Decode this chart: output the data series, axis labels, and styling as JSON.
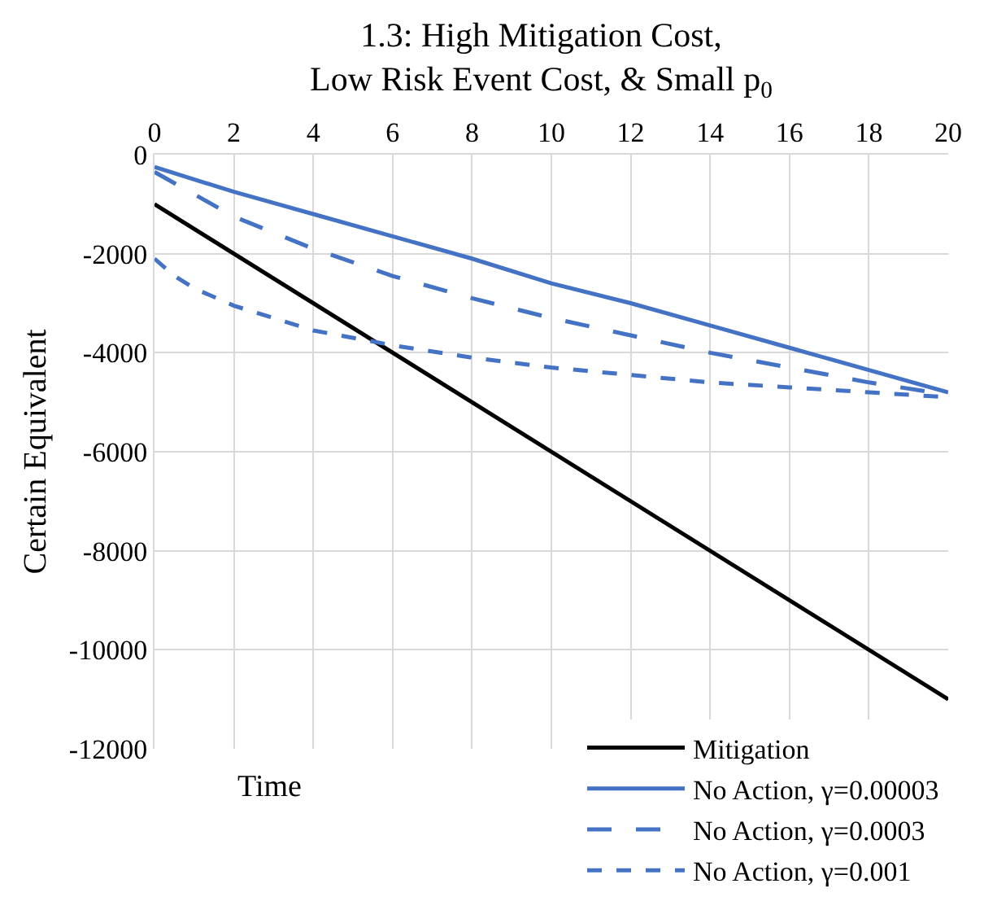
{
  "chart_data": {
    "type": "line",
    "title": "1.3: High Mitigation Cost,\nLow Risk Event Cost, & Small p$_{0}$",
    "xlabel": "Time",
    "ylabel": "Certain Equivalent",
    "xlim": [
      0,
      20
    ],
    "xticks": [
      0,
      2,
      4,
      6,
      8,
      10,
      12,
      14,
      16,
      18,
      20
    ],
    "ylim": [
      -12000,
      0
    ],
    "yticks": [
      -12000,
      -10000,
      -8000,
      -6000,
      -4000,
      -2000,
      0
    ],
    "grid": true,
    "legend": "bottom right",
    "marker": "none",
    "series": [
      {
        "name": "Mitigation",
        "color": "#000000",
        "line_style": "solid",
        "x": [
          0,
          20
        ],
        "values": [
          -1000,
          -11000
        ]
      },
      {
        "name": "No Action, γ=0.00003",
        "color": "#4472c4",
        "line_style": "solid",
        "x": [
          0,
          2,
          4,
          6,
          8,
          10,
          12,
          14,
          16,
          18,
          20
        ],
        "values": [
          -250,
          -750,
          -1200,
          -1650,
          -2100,
          -2600,
          -3000,
          -3450,
          -3900,
          -4350,
          -4800
        ]
      },
      {
        "name": "No Action, γ=0.0003",
        "color": "#4472c4",
        "line_style": "dashed",
        "x": [
          0,
          1,
          2,
          4,
          6,
          8,
          10,
          12,
          14,
          16,
          18,
          20
        ],
        "values": [
          -350,
          -800,
          -1250,
          -1900,
          -2450,
          -2900,
          -3300,
          -3650,
          -4000,
          -4300,
          -4600,
          -4850
        ]
      },
      {
        "name": "No Action, γ=0.001",
        "color": "#4472c4",
        "line_style": "dotted",
        "x": [
          0,
          0.5,
          1,
          2,
          3,
          4,
          6,
          8,
          10,
          12,
          14,
          16,
          18,
          20
        ],
        "values": [
          -2100,
          -2450,
          -2700,
          -3050,
          -3300,
          -3550,
          -3850,
          -4100,
          -4300,
          -4450,
          -4600,
          -4700,
          -4800,
          -4900
        ]
      }
    ]
  }
}
